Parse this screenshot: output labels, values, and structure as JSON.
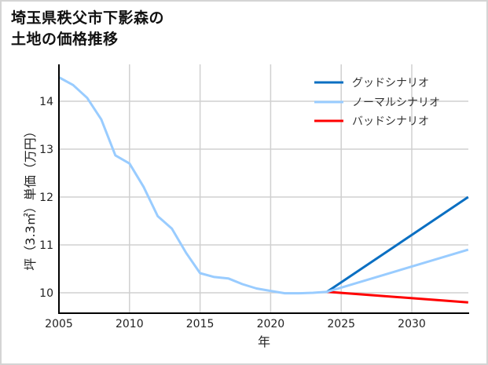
{
  "title": {
    "line1": "埼玉県秩父市下影森の",
    "line2": "土地の価格推移"
  },
  "axes": {
    "xlabel": "年",
    "ylabel": "坪（3.3㎡）単価（万円）",
    "xticks": [
      "2005",
      "2010",
      "2015",
      "2020",
      "2025",
      "2030"
    ],
    "yticks": [
      "10",
      "11",
      "12",
      "13",
      "14"
    ]
  },
  "legend": {
    "good": "グッドシナリオ",
    "normal": "ノーマルシナリオ",
    "bad": "バッドシナリオ"
  },
  "colors": {
    "good": "#0a6fc2",
    "normal": "#99ccff",
    "bad": "#ff0000",
    "grid": "#d0d0d0",
    "axis": "#000000"
  },
  "chart_data": {
    "type": "line",
    "title": "埼玉県秩父市下影森の土地の価格推移",
    "xlabel": "年",
    "ylabel": "坪（3.3㎡）単価（万円）",
    "xlim": [
      2005,
      2034
    ],
    "ylim": [
      9.6,
      14.8
    ],
    "grid": true,
    "legend_position": "upper right",
    "historical": {
      "x": [
        2005,
        2006,
        2007,
        2008,
        2009,
        2010,
        2011,
        2012,
        2013,
        2014,
        2015,
        2016,
        2017,
        2018,
        2019,
        2020,
        2021,
        2022,
        2023,
        2024
      ],
      "values": [
        14.5,
        14.34,
        14.07,
        13.62,
        12.87,
        12.7,
        12.21,
        11.6,
        11.34,
        10.84,
        10.41,
        10.33,
        10.3,
        10.18,
        10.09,
        10.04,
        9.99,
        9.99,
        10.0,
        10.02
      ]
    },
    "series": [
      {
        "name": "グッドシナリオ",
        "x": [
          2024,
          2034
        ],
        "values": [
          10.02,
          12.0
        ]
      },
      {
        "name": "ノーマルシナリオ",
        "x": [
          2005,
          2006,
          2007,
          2008,
          2009,
          2010,
          2011,
          2012,
          2013,
          2014,
          2015,
          2016,
          2017,
          2018,
          2019,
          2020,
          2021,
          2022,
          2023,
          2024,
          2034
        ],
        "values": [
          14.5,
          14.34,
          14.07,
          13.62,
          12.87,
          12.7,
          12.21,
          11.6,
          11.34,
          10.84,
          10.41,
          10.33,
          10.3,
          10.18,
          10.09,
          10.04,
          9.99,
          9.99,
          10.0,
          10.02,
          10.9
        ]
      },
      {
        "name": "バッドシナリオ",
        "x": [
          2024,
          2034
        ],
        "values": [
          10.02,
          9.8
        ]
      }
    ]
  }
}
